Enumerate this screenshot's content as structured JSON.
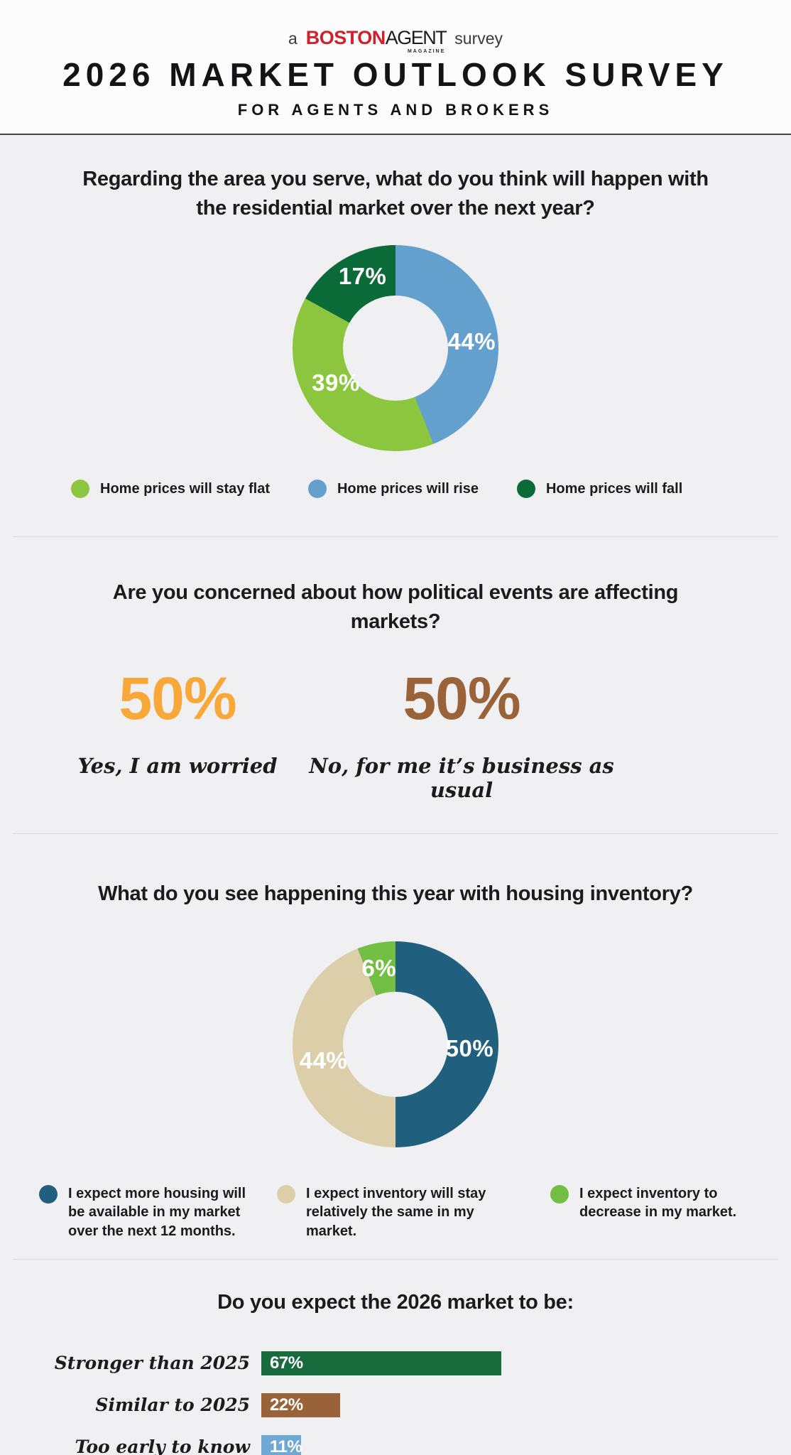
{
  "page": {
    "background": "#f0f0f2",
    "header_background": "#fcfcfd",
    "rule_color": "#454547",
    "divider_color": "#d8d8da",
    "text_color": "#1b1b1d"
  },
  "header": {
    "brand_prefix": "a",
    "brand_name_1": "BOSTON",
    "brand_name_2": "AGENT",
    "brand_sub": "MAGAZINE",
    "brand_suffix": "survey",
    "brand_color": "#d0202a",
    "title": "2026 MARKET OUTLOOK SURVEY",
    "subtitle": "FOR AGENTS AND BROKERS"
  },
  "chart_data": [
    {
      "type": "pie",
      "question": "Regarding the area you serve, what do you think will happen with the residential market over the next year?",
      "donut_hole_ratio": 0.51,
      "start_angle": "top",
      "direction": "clockwise",
      "segments": [
        {
          "label": "Home prices will rise",
          "value": 44,
          "display": "44%",
          "color": "#64a0ce"
        },
        {
          "label": "Home prices will stay flat",
          "value": 39,
          "display": "39%",
          "color": "#8cc63e"
        },
        {
          "label": "Home prices will fall",
          "value": 17,
          "display": "17%",
          "color": "#0a6a38"
        }
      ],
      "legend_position": "bottom",
      "legend": [
        {
          "label": "Home prices will stay flat",
          "color": "#8cc63e"
        },
        {
          "label": "Home prices will rise",
          "color": "#64a0ce"
        },
        {
          "label": "Home prices will fall",
          "color": "#0a6a38"
        }
      ]
    },
    {
      "type": "stat",
      "question": "Are you concerned about how political events are affecting markets?",
      "stats": [
        {
          "value": 50,
          "display": "50%",
          "label": "Yes, I am worried",
          "color": "#f7a838"
        },
        {
          "value": 50,
          "display": "50%",
          "label": "No, for me it’s business as usual",
          "color": "#9a6238"
        }
      ]
    },
    {
      "type": "pie",
      "question": "What do you see happening this year with housing inventory?",
      "donut_hole_ratio": 0.51,
      "start_angle": "top",
      "direction": "clockwise",
      "segments": [
        {
          "label": "I expect more housing will be available in my market over the next 12 months.",
          "value": 50,
          "display": "50%",
          "color": "#20607e"
        },
        {
          "label": "I expect inventory will stay relatively the same in my market.",
          "value": 44,
          "display": "44%",
          "color": "#ddceaa"
        },
        {
          "label": "I expect inventory to decrease in my market.",
          "value": 6,
          "display": "6%",
          "color": "#72bf44"
        }
      ],
      "legend_position": "bottom",
      "legend": [
        {
          "label": "I expect more housing will be available in my market over the next 12 months.",
          "color": "#20607e"
        },
        {
          "label": "I expect inventory will stay relatively the same in my market.",
          "color": "#ddceaa"
        },
        {
          "label": "I expect inventory to decrease in my market.",
          "color": "#72bf44"
        }
      ]
    },
    {
      "type": "bar",
      "question": "Do you expect the 2026 market to be:",
      "orientation": "horizontal",
      "xlim": [
        0,
        100
      ],
      "categories": [
        "Stronger than 2025",
        "Similar to 2025",
        "Too early to know"
      ],
      "values": [
        67,
        22,
        11
      ],
      "bars": [
        {
          "label": "Stronger than 2025",
          "value": 67,
          "display": "67%",
          "color": "#186b3c"
        },
        {
          "label": "Similar to 2025",
          "value": 22,
          "display": "22%",
          "color": "#9a6238"
        },
        {
          "label": "Too early to know",
          "value": 11,
          "display": "11%",
          "color": "#6fa8d2"
        }
      ]
    }
  ]
}
